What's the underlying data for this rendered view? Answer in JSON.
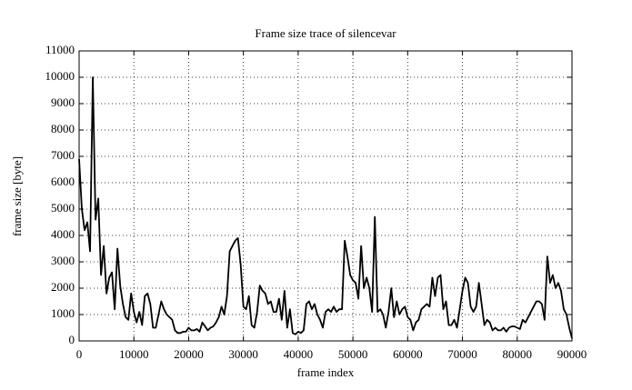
{
  "chart_data": {
    "type": "line",
    "title": "Frame size trace of silencevar",
    "x_label": "frame index",
    "y_label": "frame size [byte]",
    "xlim": [
      0,
      90000
    ],
    "ylim": [
      0,
      11000
    ],
    "xticks": [
      0,
      10000,
      20000,
      30000,
      40000,
      50000,
      60000,
      70000,
      80000,
      90000
    ],
    "yticks": [
      0,
      1000,
      2000,
      3000,
      4000,
      5000,
      6000,
      7000,
      8000,
      9000,
      10000,
      11000
    ],
    "grid": true,
    "x": [
      0,
      500,
      1000,
      1500,
      2000,
      2500,
      3000,
      3500,
      4000,
      4500,
      5000,
      5500,
      6000,
      6500,
      7000,
      7500,
      8000,
      8500,
      9000,
      9500,
      10000,
      10500,
      11000,
      11500,
      12000,
      12500,
      13000,
      13500,
      14000,
      14500,
      15000,
      15500,
      16000,
      16500,
      17000,
      17500,
      18000,
      18500,
      19000,
      19500,
      20000,
      20500,
      21000,
      21500,
      22000,
      22500,
      23000,
      23500,
      24000,
      24500,
      25000,
      25500,
      26000,
      26500,
      27000,
      27500,
      28000,
      28500,
      29000,
      29500,
      30000,
      30500,
      31000,
      31500,
      32000,
      32500,
      33000,
      33500,
      34000,
      34500,
      35000,
      35500,
      36000,
      36500,
      37000,
      37500,
      38000,
      38500,
      39000,
      39500,
      40000,
      40500,
      41000,
      41500,
      42000,
      42500,
      43000,
      43500,
      44000,
      44500,
      45000,
      45500,
      46000,
      46500,
      47000,
      47500,
      48000,
      48500,
      49000,
      49500,
      50000,
      50500,
      51000,
      51500,
      52000,
      52500,
      53000,
      53500,
      54000,
      54500,
      55000,
      55500,
      56000,
      56500,
      57000,
      57500,
      58000,
      58500,
      59000,
      59500,
      60000,
      60500,
      61000,
      61500,
      62000,
      62500,
      63000,
      63500,
      64000,
      64500,
      65000,
      65500,
      66000,
      66500,
      67000,
      67500,
      68000,
      68500,
      69000,
      69500,
      70000,
      70500,
      71000,
      71500,
      72000,
      72500,
      73000,
      73500,
      74000,
      74500,
      75000,
      75500,
      76000,
      76500,
      77000,
      77500,
      78000,
      78500,
      79000,
      79500,
      80000,
      80500,
      81000,
      81500,
      82000,
      82500,
      83000,
      83500,
      84000,
      84500,
      85000,
      85500,
      86000,
      86500,
      87000,
      87500,
      88000,
      88500,
      89000,
      89500,
      90000
    ],
    "series": [
      {
        "color": "#000000",
        "values": [
          6900,
          5000,
          4200,
          4500,
          3400,
          10000,
          4600,
          5400,
          2500,
          3600,
          1800,
          2400,
          2600,
          1200,
          3500,
          2100,
          1400,
          900,
          800,
          1800,
          1100,
          700,
          1100,
          600,
          1700,
          1800,
          1400,
          500,
          500,
          1000,
          1500,
          1200,
          1000,
          900,
          800,
          400,
          300,
          300,
          350,
          350,
          500,
          400,
          400,
          450,
          350,
          700,
          550,
          400,
          500,
          550,
          700,
          900,
          1300,
          1000,
          1700,
          3400,
          3600,
          3800,
          3900,
          2900,
          1300,
          1200,
          1700,
          600,
          500,
          1100,
          2100,
          1900,
          1800,
          1400,
          1500,
          1100,
          1100,
          1600,
          800,
          1900,
          500,
          1200,
          300,
          250,
          350,
          300,
          400,
          1400,
          1500,
          1200,
          1400,
          1000,
          800,
          500,
          1100,
          1200,
          1100,
          1300,
          1100,
          1200,
          1200,
          3800,
          3200,
          2500,
          2300,
          2200,
          1600,
          3600,
          2000,
          2400,
          2000,
          1100,
          4700,
          1100,
          1200,
          1000,
          500,
          1100,
          2000,
          900,
          1500,
          1000,
          1200,
          1300,
          900,
          800,
          400,
          700,
          800,
          1200,
          1300,
          1400,
          1300,
          2400,
          1700,
          2400,
          2500,
          1200,
          1500,
          600,
          600,
          800,
          500,
          1200,
          1900,
          2400,
          2200,
          1300,
          1100,
          1300,
          2200,
          1400,
          600,
          800,
          700,
          400,
          500,
          400,
          400,
          500,
          350,
          500,
          550,
          550,
          500,
          450,
          800,
          700,
          900,
          1100,
          1300,
          1500,
          1500,
          1400,
          800,
          3200,
          2200,
          2500,
          2000,
          2200,
          1900,
          1200,
          1000,
          500,
          100
        ]
      }
    ]
  }
}
